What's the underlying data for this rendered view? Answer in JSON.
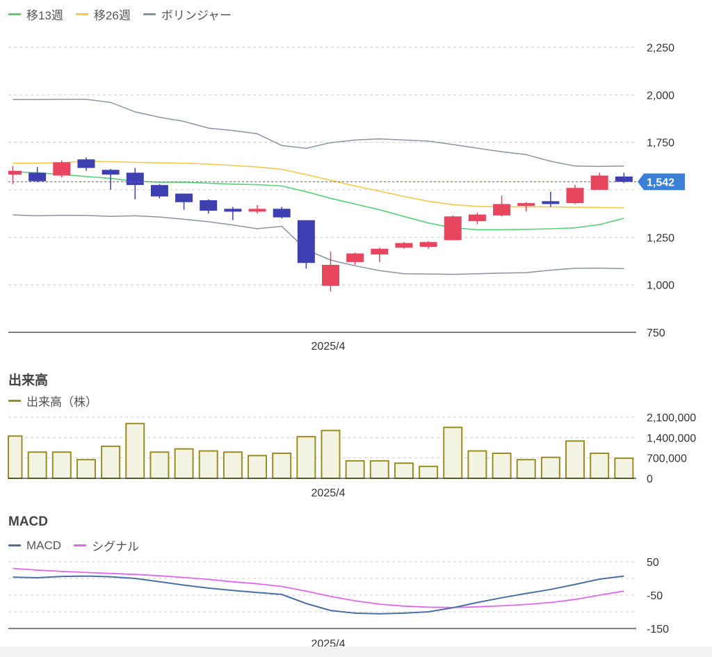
{
  "price_panel": {
    "legend": [
      {
        "label": "移13週",
        "color": "#55d17a"
      },
      {
        "label": "移26週",
        "color": "#f5c84a"
      },
      {
        "label": "ボリンジャー",
        "color": "#8a93a6"
      }
    ],
    "current_price_label": "1,542",
    "x_tick_label": "2025/4"
  },
  "volume_panel": {
    "title": "出来高",
    "legend": [
      {
        "label": "出来高（株）",
        "color": "#9a8c1e"
      }
    ],
    "x_tick_label": "2025/4"
  },
  "macd_panel": {
    "title": "MACD",
    "legend": [
      {
        "label": "MACD",
        "color": "#4a6fa5"
      },
      {
        "label": "シグナル",
        "color": "#e066f0"
      }
    ],
    "x_tick_label": "2025/4"
  },
  "colors": {
    "up": "#e8455e",
    "down": "#3e3fb0",
    "grid": "#cccccc",
    "axis": "#333333",
    "price_tag": "#3b7fd6",
    "volume_fill": "#f3f3e4",
    "volume_stroke": "#9a8c1e"
  },
  "chart_data": [
    {
      "type": "candlestick",
      "title": "",
      "ylim": [
        750,
        2250
      ],
      "yticks": [
        750,
        1000,
        1250,
        1500,
        1750,
        2000,
        2250
      ],
      "ytick_labels": [
        "750",
        "1,000",
        "1,250",
        "",
        "1,750",
        "2,000",
        "2,250"
      ],
      "current_price": 1542,
      "candles": [
        {
          "o": 1580,
          "h": 1625,
          "l": 1530,
          "c": 1600
        },
        {
          "o": 1590,
          "h": 1620,
          "l": 1540,
          "c": 1545
        },
        {
          "o": 1575,
          "h": 1655,
          "l": 1565,
          "c": 1645
        },
        {
          "o": 1660,
          "h": 1670,
          "l": 1600,
          "c": 1615
        },
        {
          "o": 1605,
          "h": 1610,
          "l": 1500,
          "c": 1580
        },
        {
          "o": 1590,
          "h": 1615,
          "l": 1450,
          "c": 1525
        },
        {
          "o": 1525,
          "h": 1530,
          "l": 1455,
          "c": 1465
        },
        {
          "o": 1480,
          "h": 1480,
          "l": 1395,
          "c": 1435
        },
        {
          "o": 1445,
          "h": 1450,
          "l": 1375,
          "c": 1390
        },
        {
          "o": 1400,
          "h": 1410,
          "l": 1340,
          "c": 1385
        },
        {
          "o": 1385,
          "h": 1420,
          "l": 1375,
          "c": 1400
        },
        {
          "o": 1400,
          "h": 1410,
          "l": 1350,
          "c": 1355
        },
        {
          "o": 1340,
          "h": 1340,
          "l": 1085,
          "c": 1115
        },
        {
          "o": 995,
          "h": 1175,
          "l": 965,
          "c": 1105
        },
        {
          "o": 1120,
          "h": 1170,
          "l": 1105,
          "c": 1165
        },
        {
          "o": 1160,
          "h": 1195,
          "l": 1120,
          "c": 1190
        },
        {
          "o": 1195,
          "h": 1225,
          "l": 1190,
          "c": 1220
        },
        {
          "o": 1200,
          "h": 1230,
          "l": 1190,
          "c": 1225
        },
        {
          "o": 1235,
          "h": 1365,
          "l": 1235,
          "c": 1360
        },
        {
          "o": 1335,
          "h": 1380,
          "l": 1320,
          "c": 1370
        },
        {
          "o": 1365,
          "h": 1470,
          "l": 1360,
          "c": 1425
        },
        {
          "o": 1415,
          "h": 1435,
          "l": 1385,
          "c": 1430
        },
        {
          "o": 1440,
          "h": 1490,
          "l": 1410,
          "c": 1425
        },
        {
          "o": 1430,
          "h": 1525,
          "l": 1425,
          "c": 1510
        },
        {
          "o": 1500,
          "h": 1590,
          "l": 1500,
          "c": 1575
        },
        {
          "o": 1570,
          "h": 1590,
          "l": 1535,
          "c": 1542
        }
      ],
      "series": [
        {
          "name": "移13週",
          "values": [
            1595,
            1590,
            1580,
            1570,
            1560,
            1545,
            1540,
            1540,
            1535,
            1530,
            1527,
            1520,
            1490,
            1455,
            1425,
            1395,
            1360,
            1325,
            1300,
            1290,
            1290,
            1292,
            1295,
            1300,
            1317,
            1350
          ]
        },
        {
          "name": "移26週",
          "values": [
            1640,
            1640,
            1643,
            1650,
            1648,
            1645,
            1642,
            1640,
            1635,
            1628,
            1620,
            1608,
            1580,
            1550,
            1520,
            1493,
            1465,
            1440,
            1422,
            1413,
            1410,
            1410,
            1410,
            1408,
            1407,
            1405
          ]
        },
        {
          "name": "ボリンジャー上",
          "values": [
            1975,
            1975,
            1976,
            1976,
            1960,
            1910,
            1882,
            1860,
            1825,
            1812,
            1795,
            1733,
            1718,
            1748,
            1762,
            1768,
            1762,
            1756,
            1738,
            1719,
            1700,
            1685,
            1650,
            1625,
            1623,
            1625
          ]
        },
        {
          "name": "ボリンジャー下",
          "values": [
            1368,
            1363,
            1366,
            1365,
            1360,
            1363,
            1357,
            1345,
            1332,
            1315,
            1295,
            1308,
            1185,
            1130,
            1100,
            1075,
            1058,
            1057,
            1055,
            1058,
            1062,
            1064,
            1077,
            1087,
            1088,
            1085
          ]
        }
      ]
    },
    {
      "type": "bar",
      "title": "出来高",
      "ylim": [
        0,
        2100000
      ],
      "yticks": [
        0,
        700000,
        1400000,
        2100000
      ],
      "ytick_labels": [
        "0",
        "700,000",
        "1,400,000",
        "2,100,000"
      ],
      "series": [
        {
          "name": "出来高（株）",
          "values": [
            1450000,
            900000,
            900000,
            640000,
            1100000,
            1880000,
            900000,
            1010000,
            940000,
            900000,
            780000,
            860000,
            1430000,
            1640000,
            600000,
            600000,
            520000,
            410000,
            1750000,
            940000,
            860000,
            640000,
            720000,
            1280000,
            860000,
            690000
          ]
        }
      ]
    },
    {
      "type": "line",
      "title": "MACD",
      "ylim": [
        -150,
        50
      ],
      "yticks": [
        -150,
        -50,
        50
      ],
      "ytick_labels": [
        "-150",
        "-50",
        "50"
      ],
      "series": [
        {
          "name": "MACD",
          "values": [
            4,
            2,
            6,
            7,
            5,
            0,
            -10,
            -20,
            -29,
            -36,
            -42,
            -48,
            -75,
            -96,
            -104,
            -106,
            -104,
            -100,
            -88,
            -72,
            -58,
            -45,
            -33,
            -18,
            -2,
            7
          ]
        },
        {
          "name": "シグナル",
          "values": [
            30,
            25,
            21,
            18,
            15,
            12,
            8,
            3,
            -3,
            -10,
            -16,
            -24,
            -38,
            -54,
            -67,
            -77,
            -83,
            -86,
            -87,
            -85,
            -82,
            -78,
            -72,
            -63,
            -50,
            -38
          ]
        }
      ]
    }
  ]
}
